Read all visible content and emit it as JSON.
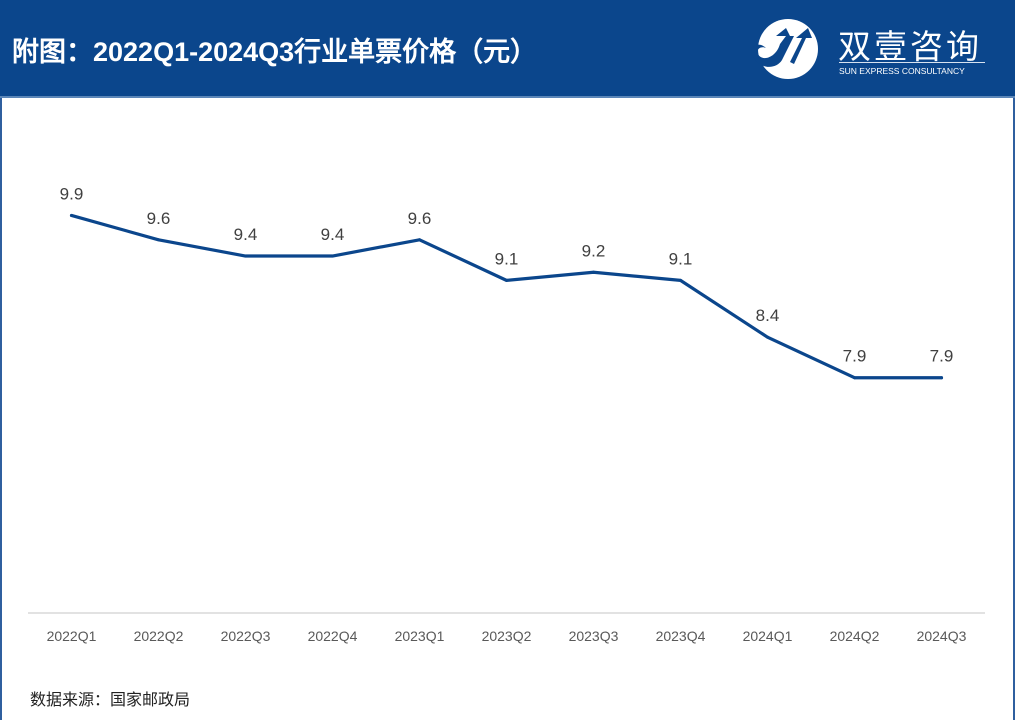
{
  "header": {
    "title": "附图：2022Q1-2024Q3行业单票价格（元）",
    "logo": {
      "icon": "sun-express-logo-icon",
      "name_cn": "双壹咨询",
      "name_en": "SUN EXPRESS CONSULTANCY"
    }
  },
  "colors": {
    "header_bg": "#0b468c",
    "line": "#0b468c",
    "label": "#404040",
    "axis": "#d9d9d9"
  },
  "chart_data": {
    "type": "line",
    "title": "附图：2022Q1-2024Q3行业单票价格（元）",
    "xlabel": "",
    "ylabel": "",
    "categories": [
      "2022Q1",
      "2022Q2",
      "2022Q3",
      "2022Q4",
      "2023Q1",
      "2023Q2",
      "2023Q3",
      "2023Q4",
      "2024Q1",
      "2024Q2",
      "2024Q3"
    ],
    "series": [
      {
        "name": "行业单票价格（元）",
        "values": [
          9.9,
          9.6,
          9.4,
          9.4,
          9.6,
          9.1,
          9.2,
          9.1,
          8.4,
          7.9,
          7.9
        ],
        "data_labels": [
          "9.9",
          "9.6",
          "9.4",
          "9.4",
          "9.6",
          "9.1",
          "9.2",
          "9.1",
          "8.4",
          "7.9",
          "7.9"
        ]
      }
    ],
    "ylim": [
      5.0,
      11.2
    ],
    "y_axis_visible": false,
    "grid": false,
    "legend": "none"
  },
  "footer": {
    "source": "数据来源：国家邮政局"
  }
}
